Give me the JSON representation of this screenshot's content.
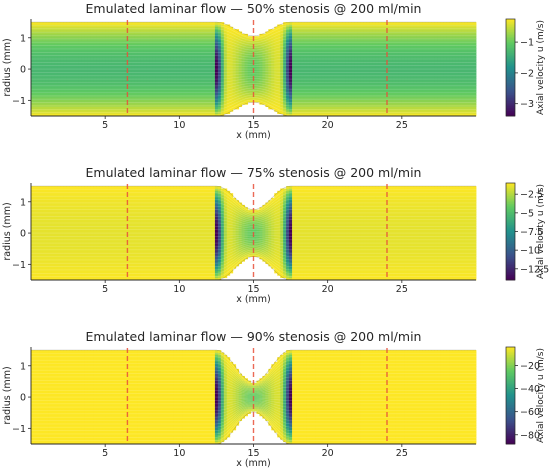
{
  "colormap": [
    "#fde725",
    "#5ec962",
    "#21918c",
    "#3b528b",
    "#440154"
  ],
  "colors": {
    "marker_line": "#e8503a",
    "axis": "#262626",
    "wall_fill": "#ffffff"
  },
  "chart_data": [
    {
      "type": "heatmap",
      "title": "Emulated laminar flow — 50% stenosis @ 200 ml/min",
      "xlabel": "x (mm)",
      "ylabel": "radius (mm)",
      "colorbar_label": "Axial velocity u (m/s)",
      "xlim": [
        0,
        30
      ],
      "ylim": [
        -1.5,
        1.6
      ],
      "x_ticks": [
        5,
        10,
        15,
        20,
        25
      ],
      "y_ticks": [
        -1,
        0,
        1
      ],
      "stenosis_start": 12.5,
      "stenosis_end": 17.5,
      "vessel_radius": 1.5,
      "throat_radius": 1.06,
      "marker_lines_x": [
        6.5,
        15,
        24
      ],
      "u_min": -3.4,
      "u_max": -0.25,
      "u_straight": -1.3,
      "colorbar_ticks": [
        -1,
        -2,
        -3
      ]
    },
    {
      "type": "heatmap",
      "title": "Emulated laminar flow — 75% stenosis @ 200 ml/min",
      "xlabel": "x (mm)",
      "ylabel": "radius (mm)",
      "colorbar_label": "Axial velocity u (m/s)",
      "xlim": [
        0,
        30
      ],
      "ylim": [
        -1.5,
        1.6
      ],
      "x_ticks": [
        5,
        10,
        15,
        20,
        25
      ],
      "y_ticks": [
        -1,
        0,
        1
      ],
      "stenosis_start": 12.5,
      "stenosis_end": 17.5,
      "vessel_radius": 1.5,
      "throat_radius": 0.75,
      "marker_lines_x": [
        6.5,
        15,
        24
      ],
      "u_min": -14,
      "u_max": -1,
      "u_straight": -1.5,
      "colorbar_ticks": [
        -2.5,
        -5.0,
        -7.5,
        -10.0,
        -12.5
      ]
    },
    {
      "type": "heatmap",
      "title": "Emulated laminar flow — 90% stenosis @ 200 ml/min",
      "xlabel": "x (mm)",
      "ylabel": "radius (mm)",
      "colorbar_label": "Axial velocity u (m/s)",
      "xlim": [
        0,
        30
      ],
      "ylim": [
        -1.5,
        1.6
      ],
      "x_ticks": [
        5,
        10,
        15,
        20,
        25
      ],
      "y_ticks": [
        -1,
        0,
        1
      ],
      "stenosis_start": 12.5,
      "stenosis_end": 17.5,
      "vessel_radius": 1.5,
      "throat_radius": 0.47,
      "marker_lines_x": [
        6.5,
        15,
        24
      ],
      "u_min": -88,
      "u_max": -4,
      "u_straight": -4,
      "colorbar_ticks": [
        -20,
        -40,
        -60,
        -80
      ]
    }
  ]
}
